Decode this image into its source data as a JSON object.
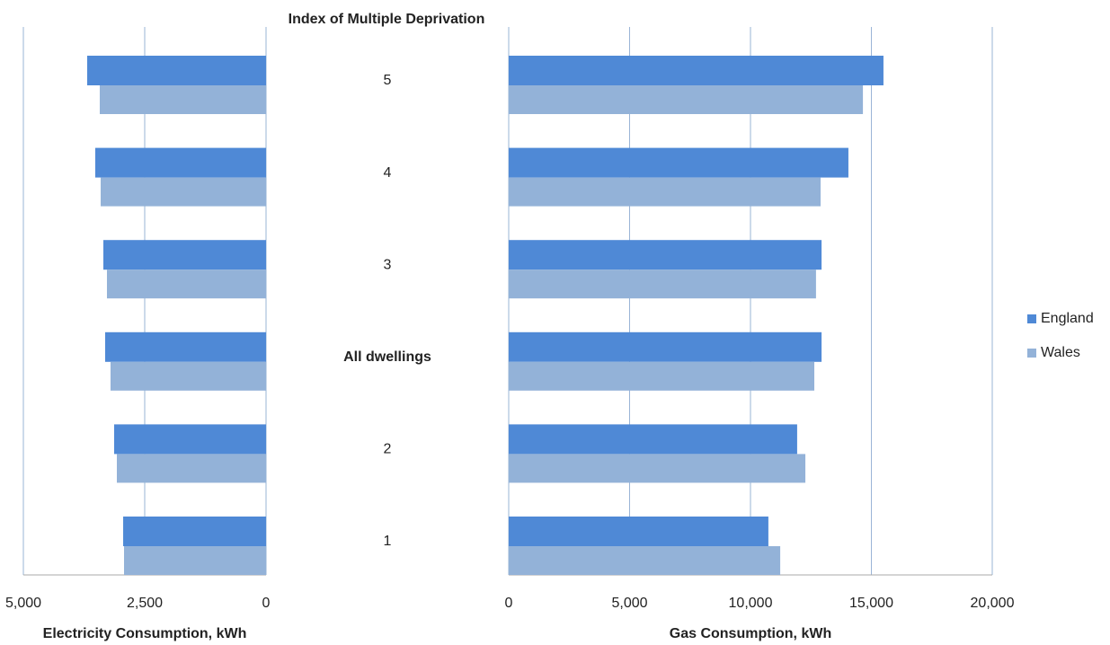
{
  "chart_data": {
    "type": "butterfly",
    "title": "Index of Multiple Deprivation",
    "categories": [
      "1",
      "2",
      "All dwellings",
      "3",
      "4",
      "5"
    ],
    "legend": "right",
    "grid": true,
    "series_names": [
      "England",
      "Wales"
    ],
    "colors": [
      "#4f89d6",
      "#93b2d8"
    ],
    "panels": [
      {
        "type": "bar",
        "x_label": "Electricity Consumption,  kWh",
        "xlim": [
          5000,
          0
        ],
        "xticks": [
          {
            "value": 5000,
            "label": "5,000"
          },
          {
            "value": 2500,
            "label": "2,500"
          },
          0
        ],
        "series": [
          {
            "values": [
              2944,
              3130,
              3315,
              3352,
              3519,
              3685
            ]
          },
          {
            "values": [
              2926,
              3074,
              3204,
              3278,
              3407,
              3426
            ]
          }
        ]
      },
      {
        "type": "bar",
        "x_label": "Gas Consumption, kWh",
        "xlim": [
          0,
          20000
        ],
        "xticks": [
          0,
          {
            "value": 5000,
            "label": "5,000"
          },
          {
            "value": 10000,
            "label": "10,000"
          },
          {
            "value": 15000,
            "label": "15,000"
          },
          {
            "value": 20000,
            "label": "20,000"
          }
        ],
        "series": [
          {
            "values": [
              10740,
              11930,
              12940,
              12940,
              14050,
              15500
            ]
          },
          {
            "values": [
              11230,
              12270,
              12640,
              12710,
              12900,
              14650
            ]
          }
        ]
      }
    ]
  }
}
